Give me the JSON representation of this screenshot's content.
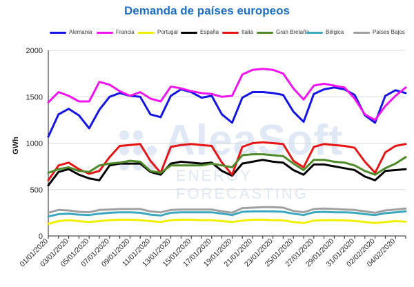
{
  "chart_data": {
    "type": "line",
    "title": "Demanda de países europeos",
    "ylabel": "GWh",
    "xlabel": "",
    "ylim": [
      0,
      2000
    ],
    "yticks": [
      0,
      500,
      1000,
      1500,
      2000
    ],
    "grid": true,
    "legend_position": "top",
    "watermark": {
      "brand": "AleaSoft",
      "sub": "ENERGY FORECASTING"
    },
    "x": [
      "01/01/2020",
      "02/01/2020",
      "03/01/2020",
      "04/01/2020",
      "05/01/2020",
      "06/01/2020",
      "07/01/2020",
      "08/01/2020",
      "09/01/2020",
      "10/01/2020",
      "11/01/2020",
      "12/01/2020",
      "13/01/2020",
      "14/01/2020",
      "15/01/2020",
      "16/01/2020",
      "17/01/2020",
      "18/01/2020",
      "19/01/2020",
      "20/01/2020",
      "21/01/2020",
      "22/01/2020",
      "23/01/2020",
      "24/01/2020",
      "25/01/2020",
      "26/01/2020",
      "27/01/2020",
      "28/01/2020",
      "29/01/2020",
      "30/01/2020",
      "31/01/2020",
      "01/02/2020",
      "02/02/2020",
      "03/02/2020",
      "04/02/2020",
      "05/02/2020"
    ],
    "xtick_labels": [
      "01/01/2020",
      "03/01/2020",
      "05/01/2020",
      "07/01/2020",
      "09/01/2020",
      "11/01/2020",
      "13/01/2020",
      "15/01/2020",
      "17/01/2020",
      "19/01/2020",
      "21/01/2020",
      "23/01/2020",
      "25/01/2020",
      "27/01/2020",
      "29/01/2020",
      "31/01/2020",
      "02/02/2020",
      "04/02/2020"
    ],
    "series": [
      {
        "name": "Alemania",
        "color": "#1414e6",
        "values": [
          1070,
          1310,
          1370,
          1300,
          1160,
          1360,
          1500,
          1540,
          1510,
          1500,
          1310,
          1280,
          1510,
          1580,
          1550,
          1490,
          1510,
          1310,
          1220,
          1490,
          1550,
          1550,
          1540,
          1520,
          1340,
          1230,
          1530,
          1580,
          1600,
          1580,
          1520,
          1300,
          1220,
          1510,
          1570,
          1540
        ]
      },
      {
        "name": "Francia",
        "color": "#f014f0",
        "values": [
          1440,
          1550,
          1510,
          1450,
          1450,
          1660,
          1630,
          1560,
          1510,
          1550,
          1480,
          1450,
          1610,
          1590,
          1560,
          1540,
          1530,
          1500,
          1510,
          1740,
          1790,
          1800,
          1790,
          1750,
          1590,
          1470,
          1620,
          1640,
          1620,
          1600,
          1480,
          1310,
          1250,
          1400,
          1510,
          1600
        ]
      },
      {
        "name": "Portugal",
        "color": "#f0f000",
        "values": [
          130,
          160,
          170,
          160,
          150,
          160,
          170,
          175,
          175,
          170,
          160,
          150,
          170,
          175,
          175,
          170,
          170,
          160,
          150,
          165,
          175,
          175,
          170,
          168,
          150,
          140,
          165,
          170,
          170,
          168,
          162,
          150,
          140,
          150,
          160,
          155
        ]
      },
      {
        "name": "España",
        "color": "#000000",
        "values": [
          545,
          690,
          720,
          660,
          620,
          600,
          760,
          780,
          780,
          780,
          690,
          660,
          780,
          800,
          790,
          780,
          790,
          700,
          650,
          780,
          800,
          820,
          800,
          790,
          710,
          660,
          770,
          770,
          750,
          730,
          710,
          640,
          600,
          700,
          710,
          720
        ]
      },
      {
        "name": "Italia",
        "color": "#e61414",
        "values": [
          600,
          760,
          790,
          720,
          670,
          700,
          850,
          970,
          980,
          990,
          810,
          680,
          960,
          980,
          990,
          980,
          970,
          790,
          660,
          960,
          1000,
          1010,
          1000,
          990,
          810,
          740,
          960,
          990,
          980,
          970,
          950,
          800,
          680,
          900,
          970,
          990
        ]
      },
      {
        "name": "Gran Bretaña",
        "color": "#4f8a2a",
        "values": [
          680,
          720,
          740,
          700,
          690,
          760,
          780,
          790,
          810,
          800,
          700,
          680,
          760,
          760,
          760,
          760,
          780,
          760,
          740,
          870,
          880,
          880,
          870,
          860,
          780,
          710,
          820,
          820,
          800,
          790,
          760,
          700,
          660,
          730,
          780,
          850
        ]
      },
      {
        "name": "Bélgica",
        "color": "#3ca8c0",
        "values": [
          210,
          235,
          240,
          230,
          225,
          240,
          250,
          255,
          255,
          250,
          230,
          220,
          250,
          255,
          255,
          255,
          255,
          240,
          225,
          260,
          265,
          265,
          265,
          260,
          240,
          225,
          255,
          260,
          255,
          255,
          250,
          235,
          225,
          245,
          255,
          265
        ]
      },
      {
        "name": "Países Bajos",
        "color": "#a0a0a0",
        "values": [
          250,
          280,
          275,
          260,
          255,
          280,
          285,
          290,
          290,
          290,
          265,
          255,
          280,
          285,
          285,
          285,
          285,
          265,
          250,
          300,
          305,
          310,
          310,
          305,
          270,
          255,
          290,
          295,
          290,
          285,
          280,
          265,
          250,
          275,
          285,
          295
        ]
      }
    ]
  }
}
